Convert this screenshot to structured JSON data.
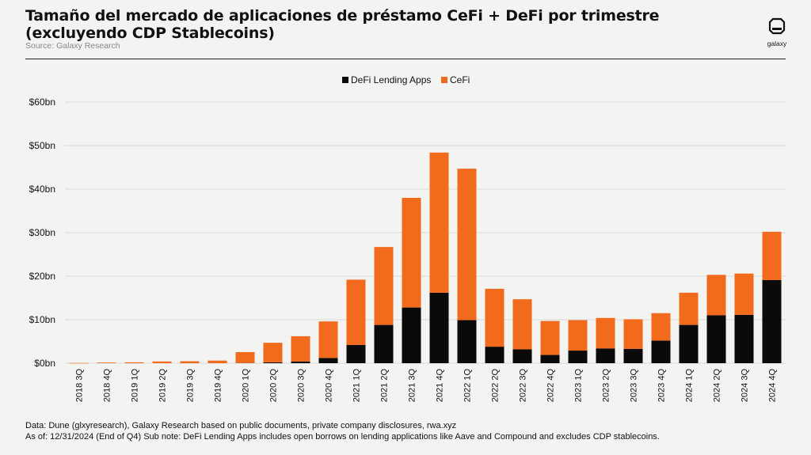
{
  "title": "Tamaño del mercado de aplicaciones de préstamo CeFi + DeFi por trimestre (excluyendo CDP Stablecoins)",
  "source": "Source: Galaxy Research",
  "logo": {
    "icon": "galaxy-logo-icon",
    "text": "galaxy"
  },
  "footnote_1": "Data: Dune (glxyresearch), Galaxy Research based on public documents, private company disclosures, rwa.xyz",
  "footnote_2": "As of: 12/31/2024 (End of Q4)   Sub note: DeFi Lending Apps includes open borrows on lending applications like Aave and Compound and excludes CDP stablecoins.",
  "colors": {
    "defi": "#0a0a0a",
    "cefi": "#f26b1d",
    "grid": "#d9d9d6",
    "background": "#f3f3f1"
  },
  "chart_data": {
    "type": "bar",
    "stacked": true,
    "categories": [
      "2018 3Q",
      "2018 4Q",
      "2019 1Q",
      "2019 2Q",
      "2019 3Q",
      "2019 4Q",
      "2020 1Q",
      "2020 2Q",
      "2020 3Q",
      "2020 4Q",
      "2021 1Q",
      "2021 2Q",
      "2021 3Q",
      "2021 4Q",
      "2022 1Q",
      "2022 2Q",
      "2022 3Q",
      "2022 4Q",
      "2023 1Q",
      "2023 2Q",
      "2023 3Q",
      "2023 4Q",
      "2024 1Q",
      "2024 2Q",
      "2024 3Q",
      "2024 4Q"
    ],
    "series": [
      {
        "name": "DeFi Lending Apps",
        "color": "#0a0a0a",
        "values": [
          0,
          0,
          0,
          0,
          0,
          0,
          0.05,
          0.2,
          0.4,
          1.2,
          4.2,
          8.8,
          12.8,
          16.2,
          9.9,
          3.8,
          3.2,
          1.9,
          2.9,
          3.4,
          3.3,
          5.2,
          8.8,
          11.0,
          11.1,
          19.1
        ]
      },
      {
        "name": "CeFi",
        "color": "#f26b1d",
        "values": [
          0.05,
          0.15,
          0.2,
          0.4,
          0.45,
          0.6,
          2.5,
          4.5,
          5.8,
          8.4,
          15.0,
          17.9,
          25.2,
          32.2,
          34.8,
          13.3,
          11.5,
          7.8,
          7.0,
          7.0,
          6.8,
          6.3,
          7.4,
          9.3,
          9.5,
          11.1
        ]
      }
    ],
    "ylim": [
      0,
      60
    ],
    "yticks": [
      0,
      10,
      20,
      30,
      40,
      50,
      60
    ],
    "ytick_labels": [
      "$0bn",
      "$10bn",
      "$20bn",
      "$30bn",
      "$40bn",
      "$50bn",
      "$60bn"
    ],
    "xlabel": "",
    "ylabel": "",
    "grid": true,
    "legend_position": "top-center"
  }
}
